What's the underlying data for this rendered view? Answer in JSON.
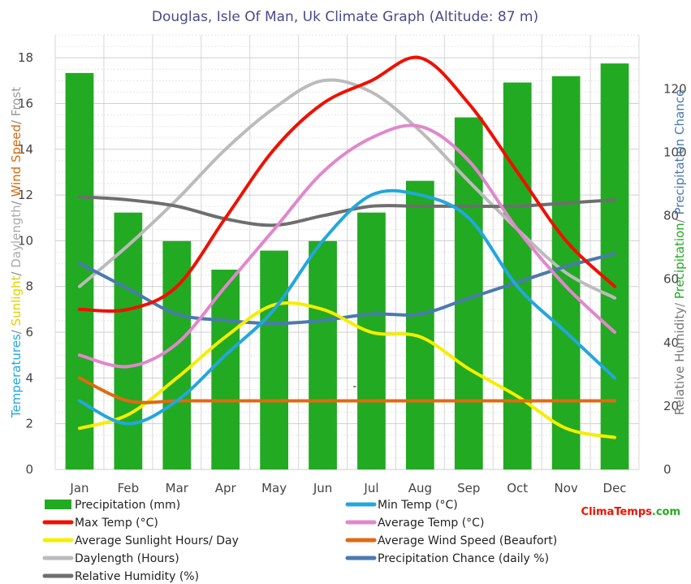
{
  "chart_data": {
    "type": "bar+line",
    "title": "Douglas, Isle Of Man, Uk Climate Graph (Altitude: 87 m)",
    "categories": [
      "Jan",
      "Feb",
      "Mar",
      "Apr",
      "May",
      "Jun",
      "Jul",
      "Aug",
      "Sep",
      "Oct",
      "Nov",
      "Dec"
    ],
    "left_axis": {
      "label_parts": [
        {
          "text": "Temperatures",
          "color": "#22a7dd"
        },
        {
          "text": "/ ",
          "color": "#888888"
        },
        {
          "text": "Sunlight",
          "color": "#e0d000"
        },
        {
          "text": "/ ",
          "color": "#888888"
        },
        {
          "text": "Daylength",
          "color": "#aaaaaa"
        },
        {
          "text": "/ ",
          "color": "#888888"
        },
        {
          "text": "Wind Speed",
          "color": "#d26a10"
        },
        {
          "text": "/ ",
          "color": "#888888"
        },
        {
          "text": "Frost",
          "color": "#999999"
        }
      ],
      "range": [
        0,
        19
      ],
      "ticks": [
        0,
        2,
        4,
        6,
        8,
        10,
        12,
        14,
        16,
        18
      ]
    },
    "right_axis": {
      "label_parts": [
        {
          "text": "Relative Humidity",
          "color": "#777777"
        },
        {
          "text": "/ ",
          "color": "#888888"
        },
        {
          "text": "Precipitation",
          "color": "#22aa22"
        },
        {
          "text": "/ ",
          "color": "#888888"
        },
        {
          "text": "Precipitation Chance",
          "color": "#4a7ab0"
        }
      ],
      "range": [
        0,
        137
      ],
      "ticks": [
        0,
        20,
        40,
        60,
        80,
        100,
        120
      ]
    },
    "bars": {
      "name": "Precipitation (mm)",
      "axis": "right",
      "color": "#22aa22",
      "values": [
        125,
        81,
        72,
        63,
        69,
        72,
        81,
        91,
        111,
        122,
        124,
        128
      ]
    },
    "series": [
      {
        "name": "Min Temp (°C)",
        "axis": "left",
        "color": "#22a7dd",
        "values": [
          3,
          2,
          3,
          5,
          7,
          10,
          12,
          12,
          11,
          8,
          6,
          4
        ]
      },
      {
        "name": "Max Temp (°C)",
        "axis": "left",
        "color": "#ee1100",
        "values": [
          7,
          7,
          8,
          11,
          14,
          16,
          17,
          18,
          16,
          13,
          10,
          8
        ]
      },
      {
        "name": "Average Temp (°C)",
        "axis": "left",
        "color": "#e088cc",
        "values": [
          5,
          4.5,
          5.5,
          8,
          10.5,
          13,
          14.5,
          15,
          13.5,
          10.5,
          8,
          6
        ]
      },
      {
        "name": "Average Sunlight Hours/ Day",
        "axis": "left",
        "color": "#f5ee00",
        "values": [
          1.8,
          2.4,
          4,
          5.8,
          7.2,
          7,
          6,
          5.8,
          4.4,
          3.2,
          1.8,
          1.4
        ]
      },
      {
        "name": "Average Wind Speed (Beaufort)",
        "axis": "left",
        "color": "#e06a10",
        "values": [
          4,
          3,
          3,
          3,
          3,
          3,
          3,
          3,
          3,
          3,
          3,
          3
        ]
      },
      {
        "name": "Daylength (Hours)",
        "axis": "left",
        "color": "#bbbbbb",
        "values": [
          8,
          9.8,
          11.8,
          14,
          15.8,
          17,
          16.5,
          14.8,
          12.6,
          10.5,
          8.6,
          7.5
        ]
      },
      {
        "name": "Precipitation Chance (daily %)",
        "axis": "right",
        "color": "#4a7ab0",
        "values": [
          65,
          57,
          49,
          47,
          46,
          47,
          49,
          49,
          54,
          59,
          64,
          68
        ]
      },
      {
        "name": "Relative Humidity (%)",
        "axis": "right",
        "color": "#6e6e6e",
        "values": [
          86,
          85,
          83,
          79,
          77,
          80,
          83,
          83,
          83,
          83,
          84,
          85
        ]
      }
    ],
    "legend_order": [
      "Precipitation (mm)",
      "Min Temp (°C)",
      "Max Temp (°C)",
      "Average Temp (°C)",
      "Average Sunlight Hours/ Day",
      "Average Wind Speed (Beaufort)",
      "Daylength (Hours)",
      "Precipitation Chance (daily %)",
      "Relative Humidity (%)"
    ],
    "annotation": "-",
    "brand": {
      "part1": "Clima",
      "part2": "Temps",
      "part3": ".com",
      "color1": "#ee1100",
      "color2": "#ee1100",
      "color3": "#22aa22"
    }
  }
}
